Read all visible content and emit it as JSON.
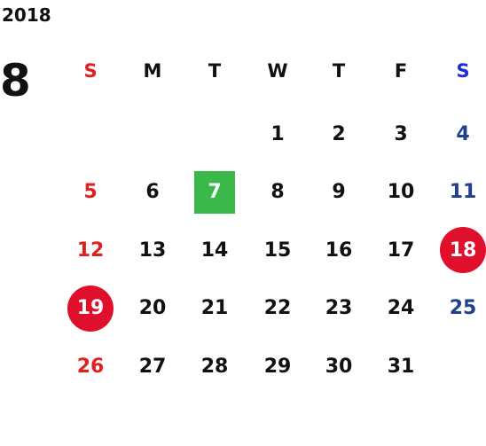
{
  "calendar": {
    "year": "2018",
    "month": "8",
    "weekdays": [
      "S",
      "M",
      "T",
      "W",
      "T",
      "F",
      "S"
    ],
    "start_weekday": 3,
    "days_in_month": 31,
    "today": 7,
    "holidays": [
      18,
      19
    ]
  },
  "colors": {
    "sunday": "#e0211f",
    "saturday": "#1f3f8f",
    "saturday_header": "#1a2fd8",
    "today_highlight": "#3bb84a",
    "holiday_highlight": "#e0102d"
  }
}
